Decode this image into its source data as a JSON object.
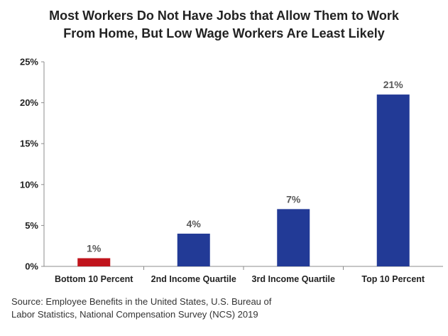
{
  "chart_data": {
    "type": "bar",
    "title_lines": [
      "Most Workers Do Not Have Jobs that Allow Them to Work",
      "From Home, But Low Wage Workers Are Least Likely"
    ],
    "categories": [
      "Bottom 10 Percent",
      "2nd Income Quartile",
      "3rd Income Quartile",
      "Top 10 Percent"
    ],
    "values": [
      1,
      4,
      7,
      21
    ],
    "data_labels": [
      "1%",
      "4%",
      "7%",
      "21%"
    ],
    "bar_colors": [
      "#c0141c",
      "#223a96",
      "#223a96",
      "#223a96"
    ],
    "ylim": [
      0,
      25
    ],
    "yticks": [
      0,
      5,
      10,
      15,
      20,
      25
    ],
    "ytick_labels": [
      "0%",
      "5%",
      "10%",
      "15%",
      "20%",
      "25%"
    ],
    "xlabel": "",
    "ylabel": "",
    "grid": false
  },
  "source_lines": [
    "Source: Employee Benefits in the United States, U.S. Bureau of",
    "Labor Statistics, National Compensation Survey (NCS) 2019"
  ]
}
